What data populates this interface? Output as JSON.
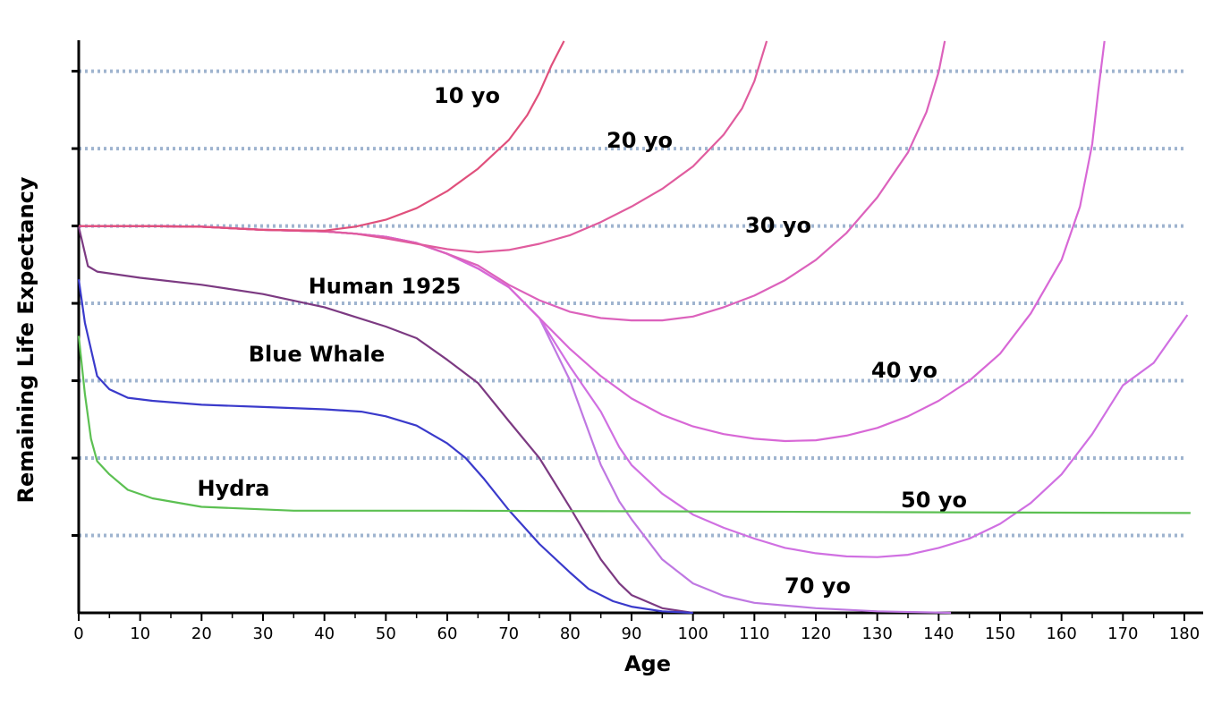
{
  "chart_data": {
    "type": "line",
    "x_label": "Age",
    "y_label": "Remaining Life Expectancy",
    "xlim": [
      0,
      180
    ],
    "ylim": [
      0,
      7.4
    ],
    "xticks": [
      0,
      10,
      20,
      30,
      40,
      50,
      60,
      70,
      80,
      90,
      100,
      110,
      120,
      130,
      140,
      150,
      160,
      170,
      180
    ],
    "yticks": [
      1,
      2,
      3,
      4,
      5,
      6,
      7
    ],
    "grid": true,
    "series": [
      {
        "name": "70 yo",
        "color": "#bf78e2",
        "x": [
          0,
          5,
          10,
          20,
          30,
          40,
          45,
          50,
          55,
          60,
          65,
          70,
          75,
          80,
          85,
          88,
          90,
          95,
          100,
          105,
          110,
          120,
          130,
          142
        ],
        "values": [
          5.0,
          5.0,
          5.0,
          4.99,
          4.95,
          4.93,
          4.9,
          4.86,
          4.78,
          4.64,
          4.45,
          4.21,
          3.81,
          3.0,
          1.91,
          1.44,
          1.21,
          0.69,
          0.38,
          0.22,
          0.13,
          0.06,
          0.02,
          0
        ]
      },
      {
        "name": "50 yo",
        "color": "#d070e2",
        "x": [
          0,
          5,
          10,
          20,
          30,
          40,
          45,
          50,
          55,
          60,
          65,
          70,
          75,
          80,
          85,
          88,
          90,
          95,
          100,
          105,
          110,
          115,
          120,
          125,
          130,
          135,
          140,
          145,
          150,
          155,
          160,
          165,
          170,
          175,
          180.5
        ],
        "values": [
          5.0,
          5.0,
          5.0,
          4.99,
          4.95,
          4.93,
          4.9,
          4.86,
          4.78,
          4.64,
          4.45,
          4.21,
          3.81,
          3.18,
          2.6,
          2.14,
          1.91,
          1.54,
          1.27,
          1.1,
          0.96,
          0.84,
          0.77,
          0.73,
          0.72,
          0.75,
          0.84,
          0.96,
          1.15,
          1.42,
          1.79,
          2.31,
          2.94,
          3.23,
          3.85
        ]
      },
      {
        "name": "40 yo",
        "color": "#d868d6",
        "x": [
          0,
          5,
          10,
          20,
          30,
          40,
          45,
          50,
          55,
          60,
          65,
          70,
          75,
          80,
          85,
          90,
          95,
          100,
          105,
          110,
          115,
          120,
          125,
          130,
          135,
          140,
          145,
          150,
          155,
          160,
          163,
          165,
          166,
          167
        ],
        "values": [
          5.0,
          5.0,
          5.0,
          4.99,
          4.95,
          4.93,
          4.9,
          4.86,
          4.78,
          4.64,
          4.45,
          4.21,
          3.81,
          3.41,
          3.06,
          2.77,
          2.56,
          2.41,
          2.31,
          2.25,
          2.22,
          2.23,
          2.29,
          2.39,
          2.54,
          2.74,
          3.0,
          3.35,
          3.87,
          4.56,
          5.25,
          6.06,
          6.76,
          7.39
        ]
      },
      {
        "name": "30 yo",
        "color": "#dc62bc",
        "x": [
          0,
          5,
          10,
          20,
          30,
          40,
          45,
          50,
          55,
          60,
          65,
          70,
          75,
          80,
          85,
          90,
          95,
          100,
          105,
          110,
          115,
          120,
          125,
          130,
          135,
          138,
          140,
          141
        ],
        "values": [
          5.0,
          5.0,
          5.0,
          4.99,
          4.95,
          4.93,
          4.9,
          4.86,
          4.78,
          4.64,
          4.49,
          4.24,
          4.04,
          3.89,
          3.81,
          3.78,
          3.78,
          3.83,
          3.95,
          4.1,
          4.3,
          4.56,
          4.91,
          5.37,
          5.95,
          6.47,
          6.99,
          7.39
        ]
      },
      {
        "name": "20 yo",
        "color": "#e05c9e",
        "x": [
          0,
          5,
          10,
          20,
          30,
          40,
          45,
          50,
          55,
          60,
          65,
          70,
          75,
          80,
          85,
          90,
          95,
          100,
          105,
          108,
          110,
          112
        ],
        "values": [
          5.0,
          5.0,
          5.0,
          4.99,
          4.95,
          4.93,
          4.9,
          4.84,
          4.77,
          4.7,
          4.66,
          4.69,
          4.77,
          4.88,
          5.05,
          5.25,
          5.48,
          5.77,
          6.18,
          6.52,
          6.87,
          7.39
        ]
      },
      {
        "name": "10 yo",
        "color": "#e0507c",
        "x": [
          0,
          5,
          10,
          20,
          30,
          40,
          45,
          50,
          55,
          60,
          65,
          70,
          73,
          75,
          77,
          79
        ],
        "values": [
          5.0,
          5.0,
          5.0,
          4.99,
          4.95,
          4.94,
          4.99,
          5.08,
          5.23,
          5.45,
          5.74,
          6.11,
          6.43,
          6.72,
          7.08,
          7.39
        ]
      },
      {
        "name": "Human 1925",
        "color": "#7c3a82",
        "x": [
          0,
          1.5,
          3,
          10,
          20,
          30,
          40,
          50,
          55,
          60,
          65,
          70,
          75,
          80,
          85,
          88,
          90,
          95,
          100
        ],
        "values": [
          4.99,
          4.48,
          4.41,
          4.33,
          4.24,
          4.12,
          3.95,
          3.7,
          3.55,
          3.27,
          2.97,
          2.48,
          2.0,
          1.36,
          0.69,
          0.38,
          0.23,
          0.06,
          0
        ]
      },
      {
        "name": "Blue Whale",
        "color": "#3a3acb",
        "x": [
          0,
          1,
          3,
          5,
          8,
          12,
          20,
          30,
          40,
          46,
          50,
          55,
          60,
          63,
          66,
          70,
          75,
          80,
          83,
          87,
          90,
          95,
          100
        ],
        "values": [
          4.31,
          3.75,
          3.06,
          2.89,
          2.78,
          2.74,
          2.69,
          2.66,
          2.63,
          2.6,
          2.54,
          2.42,
          2.19,
          2.0,
          1.73,
          1.33,
          0.89,
          0.52,
          0.31,
          0.15,
          0.08,
          0.02,
          0
        ]
      },
      {
        "name": "Hydra",
        "color": "#5cc052",
        "x": [
          0,
          1,
          2,
          3,
          5,
          8,
          12,
          20,
          35,
          60,
          100,
          140,
          181
        ],
        "values": [
          3.58,
          2.83,
          2.25,
          1.96,
          1.79,
          1.59,
          1.48,
          1.37,
          1.32,
          1.32,
          1.31,
          1.3,
          1.29
        ]
      }
    ]
  }
}
